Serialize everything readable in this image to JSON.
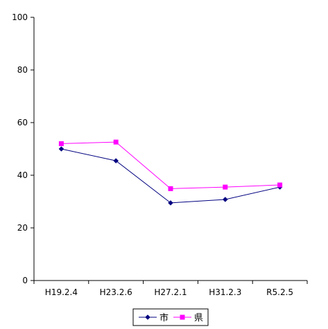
{
  "chart_data": {
    "type": "line",
    "title": "",
    "xlabel": "",
    "ylabel": "",
    "categories": [
      "H19.2.4",
      "H23.2.6",
      "H27.2.1",
      "H31.2.3",
      "R5.2.5"
    ],
    "ylim": [
      0,
      100
    ],
    "yticks": [
      0,
      20,
      40,
      60,
      80,
      100
    ],
    "grid": false,
    "legend_position": "bottom",
    "series": [
      {
        "name": "市",
        "values": [
          50.0,
          45.5,
          29.5,
          30.8,
          35.5
        ],
        "color": "#000080",
        "marker": "diamond"
      },
      {
        "name": "県",
        "values": [
          52.0,
          52.6,
          34.9,
          35.5,
          36.3
        ],
        "color": "#FF00FF",
        "marker": "square"
      }
    ]
  }
}
